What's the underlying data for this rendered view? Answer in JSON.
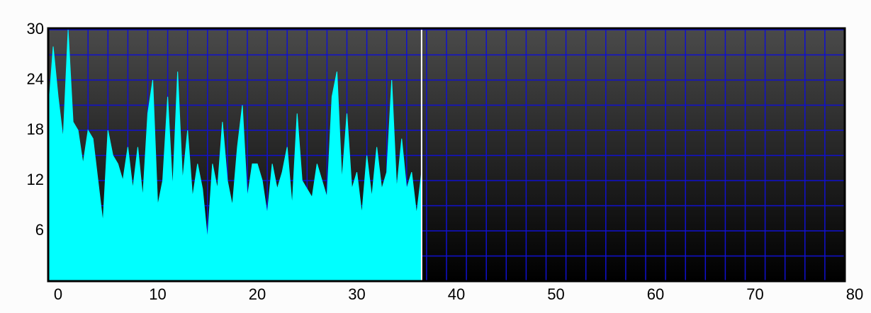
{
  "chart_data": {
    "type": "area",
    "x": [
      0,
      0.5,
      1,
      1.5,
      2,
      2.5,
      3,
      3.5,
      4,
      4.5,
      5,
      5.5,
      6,
      6.5,
      7,
      7.5,
      8,
      8.5,
      9,
      9.5,
      10,
      10.5,
      11,
      11.5,
      12,
      12.5,
      13,
      13.5,
      14,
      14.5,
      15,
      15.5,
      16,
      16.5,
      17,
      17.5,
      18,
      18.5,
      19,
      19.5,
      20,
      20.5,
      21,
      21.5,
      22,
      22.5,
      23,
      23.5,
      24,
      24.5,
      25,
      25.5,
      26,
      26.5,
      27,
      27.5,
      28,
      28.5,
      29,
      29.5,
      30,
      30.5,
      31,
      31.5,
      32,
      32.5,
      33,
      33.5,
      34,
      34.5,
      35,
      35.5,
      36,
      36.5,
      37,
      37.5
    ],
    "values": [
      20,
      28,
      22,
      17,
      30,
      19,
      18,
      14,
      18,
      17,
      12,
      7,
      18,
      15,
      14,
      12,
      16,
      11,
      16,
      10,
      20,
      24,
      9,
      12,
      22,
      11,
      25,
      12,
      18,
      10,
      14,
      11,
      5,
      14,
      11,
      19,
      12,
      9,
      16,
      21,
      10,
      14,
      14,
      12,
      8,
      14,
      11,
      13,
      16,
      9,
      20,
      12,
      11,
      10,
      14,
      12,
      10,
      22,
      25,
      12,
      20,
      11,
      13,
      8,
      15,
      10,
      16,
      11,
      13,
      24,
      11,
      17,
      11,
      13,
      8,
      13
    ],
    "color": "#00ffff",
    "xlim": [
      0,
      80
    ],
    "ylim": [
      0,
      30
    ],
    "xticks": [
      0,
      10,
      20,
      30,
      40,
      50,
      60,
      70,
      80
    ],
    "yticks": [
      6,
      12,
      18,
      24,
      30
    ],
    "xgrid": [
      0,
      2,
      4,
      6,
      8,
      10,
      12,
      14,
      16,
      18,
      20,
      22,
      24,
      26,
      28,
      30,
      32,
      34,
      36,
      38,
      40,
      42,
      44,
      46,
      48,
      50,
      52,
      54,
      56,
      58,
      60,
      62,
      64,
      66,
      68,
      70,
      72,
      74,
      76,
      78,
      80
    ],
    "ygrid": [
      0,
      3,
      6,
      9,
      12,
      15,
      18,
      21,
      24,
      27,
      30
    ],
    "grid_color": "#1010d0"
  }
}
